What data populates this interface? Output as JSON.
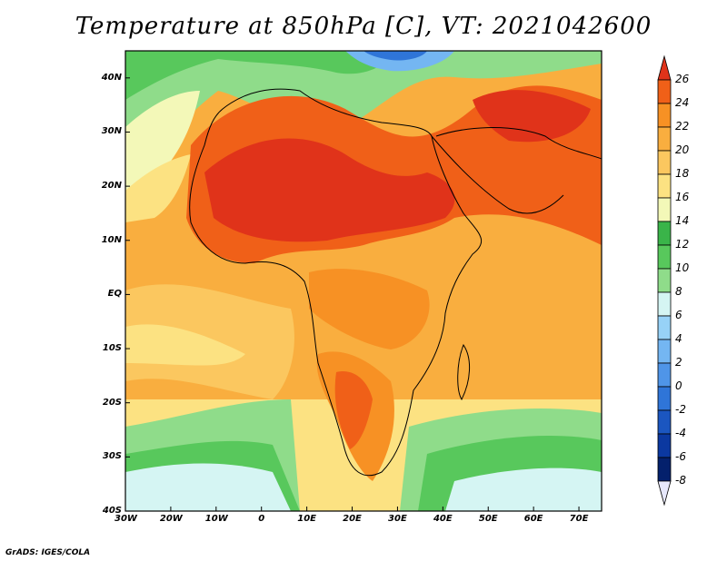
{
  "title": "Temperature at 850hPa [C], VT: 2021042600",
  "footer": "GrADS: IGES/COLA",
  "map": {
    "lon_range": [
      -30,
      75
    ],
    "lat_range": [
      -40,
      45
    ],
    "lon_ticks": [
      {
        "value": -30,
        "label": "30W"
      },
      {
        "value": -20,
        "label": "20W"
      },
      {
        "value": -10,
        "label": "10W"
      },
      {
        "value": 0,
        "label": "0"
      },
      {
        "value": 10,
        "label": "10E"
      },
      {
        "value": 20,
        "label": "20E"
      },
      {
        "value": 30,
        "label": "30E"
      },
      {
        "value": 40,
        "label": "40E"
      },
      {
        "value": 50,
        "label": "50E"
      },
      {
        "value": 60,
        "label": "60E"
      },
      {
        "value": 70,
        "label": "70E"
      }
    ],
    "lat_ticks": [
      {
        "value": 40,
        "label": "40N"
      },
      {
        "value": 30,
        "label": "30N"
      },
      {
        "value": 20,
        "label": "20N"
      },
      {
        "value": 10,
        "label": "10N"
      },
      {
        "value": 0,
        "label": "EQ"
      },
      {
        "value": -10,
        "label": "10S"
      },
      {
        "value": -20,
        "label": "20S"
      },
      {
        "value": -30,
        "label": "30S"
      },
      {
        "value": -40,
        "label": "40S"
      }
    ]
  },
  "colorbar": {
    "levels": [
      "26",
      "24",
      "22",
      "20",
      "18",
      "16",
      "14",
      "12",
      "10",
      "8",
      "6",
      "4",
      "2",
      "0",
      "-2",
      "-4",
      "-6",
      "-8"
    ],
    "colors": [
      "#e0331a",
      "#f06018",
      "#f79124",
      "#f9ae3f",
      "#fbc75f",
      "#fce282",
      "#f3f8b8",
      "#3ab449",
      "#58c85c",
      "#8fdc8a",
      "#d5f5f3",
      "#97d2f7",
      "#74b6f2",
      "#4f95e8",
      "#2f75d8",
      "#1b56c0",
      "#0b38a0",
      "#04206c",
      "#e7e8fb"
    ]
  }
}
